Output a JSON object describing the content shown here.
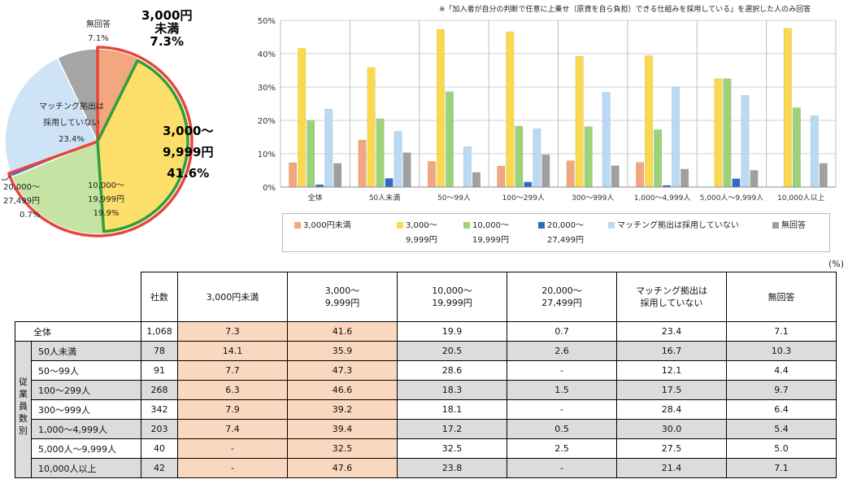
{
  "pie": {
    "title": "",
    "slices": [
      {
        "label": "3,000円未満",
        "value": 7.3,
        "color": "#f2a77e",
        "stroke": "#e8a080"
      },
      {
        "label": "3,000〜9,999円",
        "value": 41.6,
        "color": "#fbdf6a",
        "stroke": "#f7d45a"
      },
      {
        "label": "10,000〜19,999円",
        "value": 19.9,
        "color": "#c5e3a3",
        "stroke": "#b3d68f"
      },
      {
        "label": "20,000〜27,499円",
        "value": 0.7,
        "color": "#3f6fc4",
        "stroke": "#3f6fc4"
      },
      {
        "label": "マッチング拠出は採用していない",
        "value": 23.4,
        "color": "#cfe3f6",
        "stroke": "#b8d4ee"
      },
      {
        "label": "無回答",
        "value": 7.1,
        "color": "#a5a5a5",
        "stroke": "#999999"
      }
    ],
    "labels": {
      "no_answer": {
        "name": "無回答",
        "pct": "7.1%"
      },
      "under3000": {
        "line1": "3,000円",
        "line2": "未満",
        "pct": "7.3%"
      },
      "k3_9": {
        "line1": "3,000〜",
        "line2": "9,999円",
        "pct": "41.6%"
      },
      "k10_19": {
        "line1": "10,000〜",
        "line2": "19,999円",
        "pct": "19.9%"
      },
      "k20_27": {
        "line1": "20,000〜",
        "line2": "27,499円",
        "pct": "0.7%"
      },
      "matching": {
        "line1": "マッチング拠出は",
        "line2": "採用していない",
        "pct": "23.4%"
      }
    },
    "highlight_colors": {
      "outer": "#e8453c",
      "inner": "#2e9e3e"
    }
  },
  "chart_data": {
    "type": "bar",
    "title": "",
    "note": "※「加入者が自分の判断で任意に上乗せ（原資を自ら負担）できる仕組みを採用している」を選択した人のみ回答",
    "categories": [
      "全体",
      "50人未満",
      "50〜99人",
      "100〜299人",
      "300〜999人",
      "1,000〜4,999人",
      "5,000人〜9,999人",
      "10,000人以上"
    ],
    "ylim": [
      0,
      50
    ],
    "yticks": [
      "0%",
      "10%",
      "20%",
      "30%",
      "40%",
      "50%"
    ],
    "xlabel": "",
    "ylabel": "",
    "series": [
      {
        "name": "3,000円未満",
        "legend_lines": [
          "3,000円未満"
        ],
        "color": "#f2a77e",
        "values": [
          7.3,
          14.1,
          7.7,
          6.3,
          7.9,
          7.4,
          0,
          0
        ]
      },
      {
        "name": "3,000〜9,999円",
        "legend_lines": [
          "3,000〜",
          "9,999円"
        ],
        "color": "#fbd94f",
        "values": [
          41.6,
          35.9,
          47.3,
          46.6,
          39.2,
          39.4,
          32.5,
          47.6
        ]
      },
      {
        "name": "10,000〜19,999円",
        "legend_lines": [
          "10,000〜",
          "19,999円"
        ],
        "color": "#9bd27a",
        "values": [
          19.9,
          20.5,
          28.6,
          18.3,
          18.1,
          17.2,
          32.5,
          23.8
        ]
      },
      {
        "name": "20,000〜27,499円",
        "legend_lines": [
          "20,000〜",
          "27,499円"
        ],
        "color": "#2f69c8",
        "values": [
          0.7,
          2.6,
          0,
          1.5,
          0,
          0.5,
          2.5,
          0
        ]
      },
      {
        "name": "マッチング拠出は採用していない",
        "legend_lines": [
          "マッチング拠出は採用していない"
        ],
        "color": "#b9d9f4",
        "values": [
          23.4,
          16.7,
          12.1,
          17.5,
          28.4,
          30.0,
          27.5,
          21.4
        ]
      },
      {
        "name": "無回答",
        "legend_lines": [
          "無回答"
        ],
        "color": "#a0a0a0",
        "values": [
          7.1,
          10.3,
          4.4,
          9.7,
          6.4,
          5.4,
          5.0,
          7.1
        ]
      }
    ]
  },
  "table": {
    "unit": "(%)",
    "group_label": [
      "従",
      "業",
      "員",
      "数",
      "別"
    ],
    "headers": {
      "companies": "社数",
      "c1": [
        "3,000円未満"
      ],
      "c2": [
        "3,000〜",
        "9,999円"
      ],
      "c3": [
        "10,000〜",
        "19,999円"
      ],
      "c4": [
        "20,000〜",
        "27,499円"
      ],
      "c5": [
        "マッチング拠出は",
        "採用していない"
      ],
      "c6": [
        "無回答"
      ]
    },
    "rows": [
      {
        "label": "全体",
        "count": "1,068",
        "c1": "7.3",
        "c2": "41.6",
        "c3": "19.9",
        "c4": "0.7",
        "c5": "23.4",
        "c6": "7.1"
      },
      {
        "label": "50人未満",
        "count": "78",
        "c1": "14.1",
        "c2": "35.9",
        "c3": "20.5",
        "c4": "2.6",
        "c5": "16.7",
        "c6": "10.3"
      },
      {
        "label": "50〜99人",
        "count": "91",
        "c1": "7.7",
        "c2": "47.3",
        "c3": "28.6",
        "c4": "-",
        "c5": "12.1",
        "c6": "4.4"
      },
      {
        "label": "100〜299人",
        "count": "268",
        "c1": "6.3",
        "c2": "46.6",
        "c3": "18.3",
        "c4": "1.5",
        "c5": "17.5",
        "c6": "9.7"
      },
      {
        "label": "300〜999人",
        "count": "342",
        "c1": "7.9",
        "c2": "39.2",
        "c3": "18.1",
        "c4": "-",
        "c5": "28.4",
        "c6": "6.4"
      },
      {
        "label": "1,000〜4,999人",
        "count": "203",
        "c1": "7.4",
        "c2": "39.4",
        "c3": "17.2",
        "c4": "0.5",
        "c5": "30.0",
        "c6": "5.4"
      },
      {
        "label": "5,000人〜9,999人",
        "count": "40",
        "c1": "-",
        "c2": "32.5",
        "c3": "32.5",
        "c4": "2.5",
        "c5": "27.5",
        "c6": "5.0"
      },
      {
        "label": "10,000人以上",
        "count": "42",
        "c1": "-",
        "c2": "47.6",
        "c3": "23.8",
        "c4": "-",
        "c5": "21.4",
        "c6": "7.1"
      }
    ]
  }
}
